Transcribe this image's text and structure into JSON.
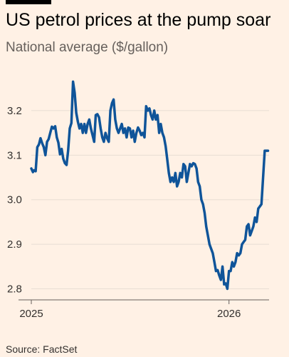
{
  "header": {
    "title": "US petrol prices at the pump soar",
    "subtitle": "National average ($/gallon)"
  },
  "footer": {
    "source": "Source: FactSet"
  },
  "colors": {
    "background": "#fff1e5",
    "line": "#0f5499",
    "grid": "#e8ddd3",
    "axis": "#66605c",
    "brand_bar": "#000000"
  },
  "chart_data": {
    "type": "line",
    "title": "US petrol prices at the pump soar",
    "subtitle": "National average ($/gallon)",
    "xlabel": "",
    "ylabel": "",
    "x_ticks": [
      "2025",
      "2026"
    ],
    "y_ticks": [
      "2.8",
      "2.9",
      "3.0",
      "3.1",
      "3.2"
    ],
    "y_tick_values": [
      2.8,
      2.9,
      3.0,
      3.1,
      3.2
    ],
    "ylim": [
      2.78,
      3.28
    ],
    "xlim": [
      "2025-01-01",
      "2026-03-16"
    ],
    "grid": true,
    "legend": "none",
    "series": [
      {
        "x": [
          "2025-01-01",
          "2025-01-04",
          "2025-01-06",
          "2025-01-09",
          "2025-01-12",
          "2025-01-15",
          "2025-01-18",
          "2025-01-21",
          "2025-01-24",
          "2025-01-27",
          "2025-01-30",
          "2025-02-02",
          "2025-02-05",
          "2025-02-08",
          "2025-02-11",
          "2025-02-14",
          "2025-02-17",
          "2025-02-20",
          "2025-02-23",
          "2025-02-26",
          "2025-03-01",
          "2025-03-04",
          "2025-03-07",
          "2025-03-10",
          "2025-03-13",
          "2025-03-16",
          "2025-03-19",
          "2025-03-22",
          "2025-03-25",
          "2025-03-28",
          "2025-03-31",
          "2025-04-03",
          "2025-04-06",
          "2025-04-09",
          "2025-04-12",
          "2025-04-15",
          "2025-04-18",
          "2025-04-21",
          "2025-04-24",
          "2025-04-27",
          "2025-04-30",
          "2025-05-03",
          "2025-05-06",
          "2025-05-09",
          "2025-05-12",
          "2025-05-15",
          "2025-05-18",
          "2025-05-21",
          "2025-05-24",
          "2025-05-27",
          "2025-05-30",
          "2025-06-02",
          "2025-06-05",
          "2025-06-08",
          "2025-06-11",
          "2025-06-14",
          "2025-06-17",
          "2025-06-20",
          "2025-06-23",
          "2025-06-26",
          "2025-06-29",
          "2025-07-02",
          "2025-07-05",
          "2025-07-08",
          "2025-07-11",
          "2025-07-14",
          "2025-07-17",
          "2025-07-20",
          "2025-07-23",
          "2025-07-26",
          "2025-07-29",
          "2025-08-01",
          "2025-08-04",
          "2025-08-07",
          "2025-08-10",
          "2025-08-13",
          "2025-08-16",
          "2025-08-19",
          "2025-08-22",
          "2025-08-25",
          "2025-08-28",
          "2025-08-31",
          "2025-09-03",
          "2025-09-06",
          "2025-09-09",
          "2025-09-12",
          "2025-09-15",
          "2025-09-18",
          "2025-09-21",
          "2025-09-24",
          "2025-09-27",
          "2025-09-30",
          "2025-10-03",
          "2025-10-06",
          "2025-10-09",
          "2025-10-12",
          "2025-10-15",
          "2025-10-18",
          "2025-10-21",
          "2025-10-24",
          "2025-10-27",
          "2025-10-30",
          "2025-11-02",
          "2025-11-05",
          "2025-11-08",
          "2025-11-11",
          "2025-11-14",
          "2025-11-17",
          "2025-11-20",
          "2025-11-23",
          "2025-11-26",
          "2025-11-29",
          "2025-12-02",
          "2025-12-05",
          "2025-12-08",
          "2025-12-11",
          "2025-12-14",
          "2025-12-17",
          "2025-12-20",
          "2025-12-23",
          "2025-12-26",
          "2025-12-29",
          "2026-01-01",
          "2026-01-04",
          "2026-01-07",
          "2026-01-10",
          "2026-01-13",
          "2026-01-16",
          "2026-01-19",
          "2026-01-22",
          "2026-01-25",
          "2026-01-28",
          "2026-01-31",
          "2026-02-03",
          "2026-02-06",
          "2026-02-09",
          "2026-02-12",
          "2026-02-15",
          "2026-02-18",
          "2026-02-21",
          "2026-02-24",
          "2026-02-27",
          "2026-03-02",
          "2026-03-05",
          "2026-03-08",
          "2026-03-11",
          "2026-03-14"
        ],
        "values": [
          3.07,
          3.062,
          3.066,
          3.064,
          3.118,
          3.124,
          3.138,
          3.127,
          3.118,
          3.1,
          3.13,
          3.136,
          3.15,
          3.164,
          3.16,
          3.165,
          3.14,
          3.128,
          3.102,
          3.114,
          3.092,
          3.082,
          3.078,
          3.11,
          3.16,
          3.172,
          3.265,
          3.24,
          3.195,
          3.175,
          3.16,
          3.17,
          3.15,
          3.17,
          3.15,
          3.17,
          3.18,
          3.16,
          3.145,
          3.13,
          3.19,
          3.192,
          3.185,
          3.16,
          3.14,
          3.13,
          3.15,
          3.138,
          3.13,
          3.2,
          3.217,
          3.225,
          3.18,
          3.16,
          3.15,
          3.16,
          3.17,
          3.15,
          3.16,
          3.14,
          3.162,
          3.16,
          3.14,
          3.155,
          3.13,
          3.15,
          3.162,
          3.155,
          3.145,
          3.15,
          3.14,
          3.21,
          3.2,
          3.205,
          3.19,
          3.18,
          3.2,
          3.18,
          3.19,
          3.15,
          3.17,
          3.15,
          3.14,
          3.12,
          3.09,
          3.06,
          3.04,
          3.05,
          3.04,
          3.06,
          3.03,
          3.04,
          3.06,
          3.05,
          3.08,
          3.075,
          3.04,
          3.06,
          3.08,
          3.075,
          3.082,
          3.08,
          3.07,
          3.04,
          3.03,
          3.0,
          2.99,
          2.97,
          2.94,
          2.92,
          2.9,
          2.89,
          2.88,
          2.86,
          2.84,
          2.842,
          2.83,
          2.82,
          2.85,
          2.81,
          2.812,
          2.8,
          2.84,
          2.84,
          2.86,
          2.85,
          2.86,
          2.88,
          2.875,
          2.88,
          2.9,
          2.905,
          2.91,
          2.94,
          2.945,
          2.92,
          2.93,
          2.94,
          2.96,
          2.95,
          2.98,
          2.985,
          2.99,
          3.05,
          3.11,
          3.11,
          3.11
        ]
      }
    ]
  }
}
